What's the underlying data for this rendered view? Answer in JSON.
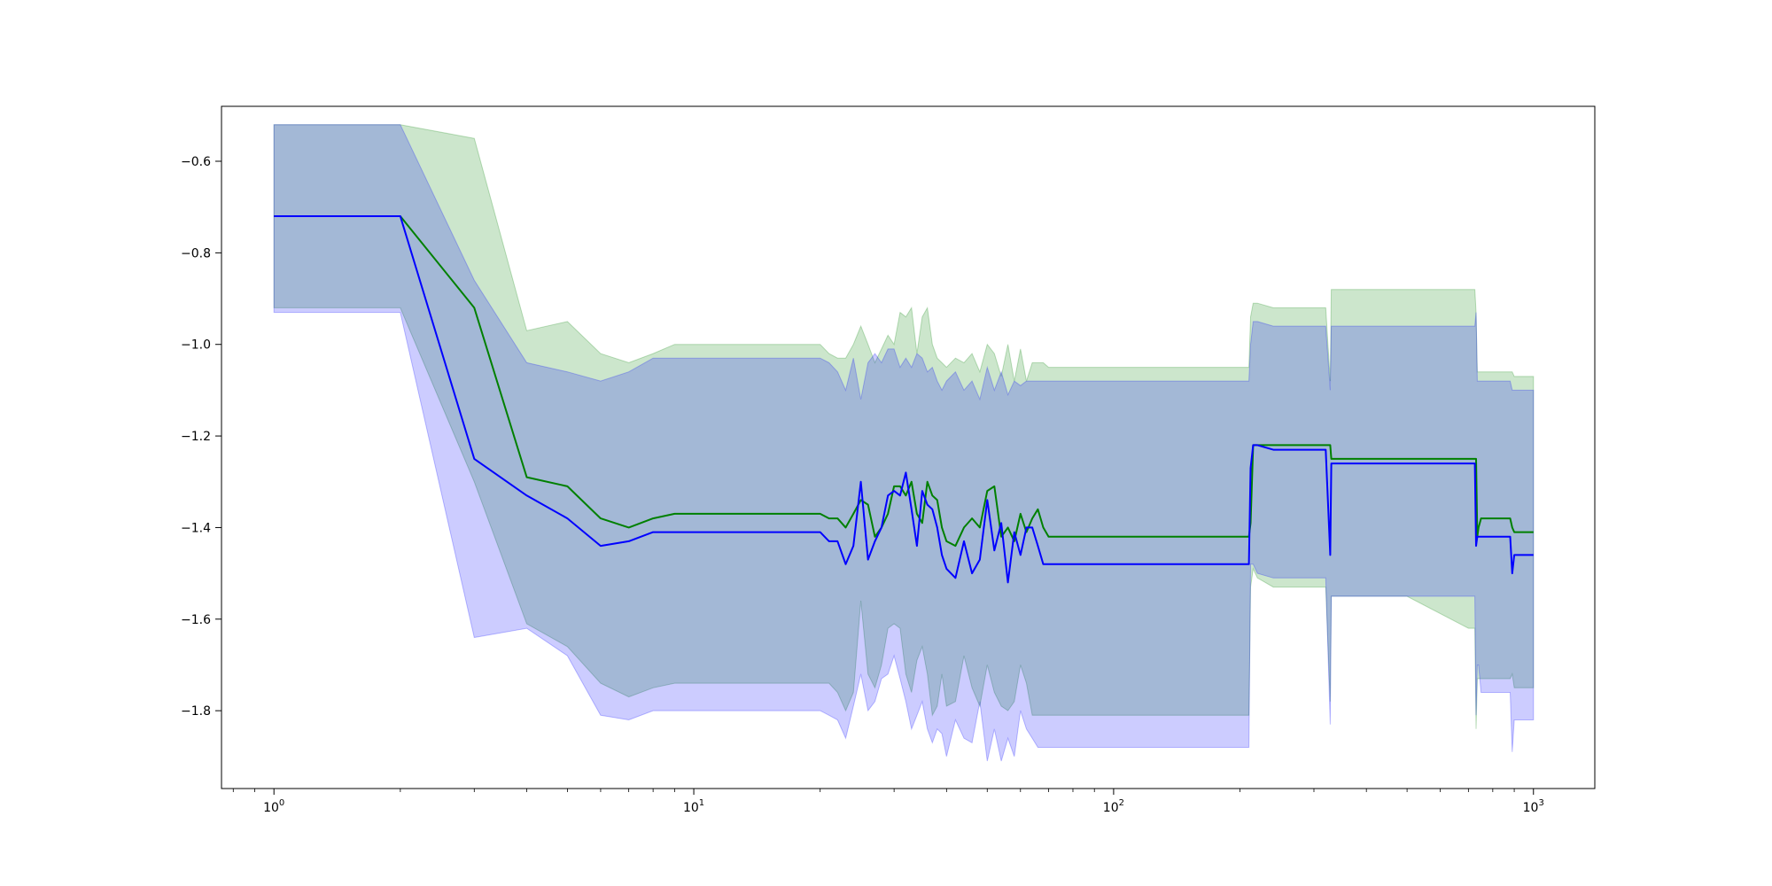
{
  "chart_data": {
    "type": "line",
    "title": "",
    "xlabel": "",
    "ylabel": "",
    "xscale": "log",
    "xlim": [
      0.75,
      1400
    ],
    "ylim": [
      -1.97,
      -0.48
    ],
    "grid": false,
    "legend": "none",
    "x_ticks": [
      {
        "base": "10",
        "exp": "0",
        "value": 1
      },
      {
        "base": "10",
        "exp": "1",
        "value": 10
      },
      {
        "base": "10",
        "exp": "2",
        "value": 100
      },
      {
        "base": "10",
        "exp": "3",
        "value": 1000
      }
    ],
    "y_ticks": [
      {
        "label": "−0.6",
        "value": -0.6
      },
      {
        "label": "−0.8",
        "value": -0.8
      },
      {
        "label": "−1.0",
        "value": -1.0
      },
      {
        "label": "−1.2",
        "value": -1.2
      },
      {
        "label": "−1.4",
        "value": -1.4
      },
      {
        "label": "−1.6",
        "value": -1.6
      },
      {
        "label": "−1.8",
        "value": -1.8
      }
    ],
    "series": [
      {
        "color": "#008000",
        "x": [
          1,
          2,
          3,
          4,
          5,
          6,
          7,
          8,
          9,
          10,
          20,
          21,
          22,
          23,
          24,
          25,
          26,
          27,
          28,
          29,
          30,
          31,
          32,
          33,
          34,
          35,
          36,
          37,
          38,
          39,
          40,
          42,
          44,
          46,
          48,
          50,
          52,
          54,
          56,
          58,
          60,
          62,
          64,
          66,
          68,
          70,
          100,
          200,
          210,
          212,
          215,
          220,
          240,
          320,
          328,
          330,
          340,
          500,
          700,
          725,
          730,
          735,
          740,
          750,
          800,
          880,
          890,
          900,
          1000
        ],
        "y": [
          -0.72,
          -0.72,
          -0.92,
          -1.29,
          -1.31,
          -1.38,
          -1.4,
          -1.38,
          -1.37,
          -1.37,
          -1.37,
          -1.38,
          -1.38,
          -1.4,
          -1.37,
          -1.34,
          -1.35,
          -1.42,
          -1.4,
          -1.37,
          -1.31,
          -1.31,
          -1.33,
          -1.3,
          -1.37,
          -1.39,
          -1.3,
          -1.33,
          -1.34,
          -1.4,
          -1.43,
          -1.44,
          -1.4,
          -1.38,
          -1.4,
          -1.32,
          -1.31,
          -1.42,
          -1.4,
          -1.43,
          -1.37,
          -1.41,
          -1.38,
          -1.36,
          -1.4,
          -1.42,
          -1.42,
          -1.42,
          -1.42,
          -1.39,
          -1.22,
          -1.22,
          -1.22,
          -1.22,
          -1.22,
          -1.25,
          -1.25,
          -1.25,
          -1.25,
          -1.25,
          -1.25,
          -1.42,
          -1.4,
          -1.38,
          -1.38,
          -1.38,
          -1.4,
          -1.41,
          -1.41
        ],
        "upper": [
          -0.52,
          -0.52,
          -0.55,
          -0.97,
          -0.95,
          -1.02,
          -1.04,
          -1.02,
          -1.0,
          -1.0,
          -1.0,
          -1.02,
          -1.03,
          -1.03,
          -1.0,
          -0.96,
          -1.0,
          -1.04,
          -1.01,
          -0.98,
          -1.0,
          -0.93,
          -0.94,
          -0.92,
          -1.02,
          -0.94,
          -0.92,
          -1.0,
          -1.03,
          -1.04,
          -1.05,
          -1.03,
          -1.04,
          -1.02,
          -1.06,
          -1.0,
          -1.02,
          -1.07,
          -1.0,
          -1.08,
          -1.01,
          -1.08,
          -1.04,
          -1.04,
          -1.04,
          -1.05,
          -1.05,
          -1.05,
          -1.05,
          -0.94,
          -0.91,
          -0.91,
          -0.92,
          -0.92,
          -1.08,
          -0.88,
          -0.88,
          -0.88,
          -0.88,
          -0.88,
          -0.93,
          -1.06,
          -1.06,
          -1.06,
          -1.06,
          -1.06,
          -1.06,
          -1.07,
          -1.07
        ],
        "lower": [
          -0.92,
          -0.92,
          -1.3,
          -1.61,
          -1.66,
          -1.74,
          -1.77,
          -1.75,
          -1.74,
          -1.74,
          -1.74,
          -1.74,
          -1.76,
          -1.8,
          -1.76,
          -1.56,
          -1.72,
          -1.75,
          -1.7,
          -1.62,
          -1.61,
          -1.62,
          -1.72,
          -1.76,
          -1.69,
          -1.66,
          -1.72,
          -1.81,
          -1.79,
          -1.72,
          -1.79,
          -1.78,
          -1.68,
          -1.75,
          -1.79,
          -1.7,
          -1.76,
          -1.79,
          -1.8,
          -1.78,
          -1.7,
          -1.74,
          -1.81,
          -1.81,
          -1.81,
          -1.81,
          -1.81,
          -1.81,
          -1.81,
          -1.53,
          -1.49,
          -1.51,
          -1.53,
          -1.53,
          -1.78,
          -1.55,
          -1.55,
          -1.55,
          -1.62,
          -1.62,
          -1.84,
          -1.73,
          -1.73,
          -1.73,
          -1.73,
          -1.73,
          -1.72,
          -1.75,
          -1.75
        ]
      },
      {
        "color": "#0000ff",
        "x": [
          1,
          2,
          3,
          4,
          5,
          6,
          7,
          8,
          9,
          10,
          20,
          21,
          22,
          23,
          24,
          25,
          26,
          27,
          28,
          29,
          30,
          31,
          32,
          33,
          34,
          35,
          36,
          37,
          38,
          39,
          40,
          42,
          44,
          46,
          48,
          50,
          52,
          54,
          56,
          58,
          60,
          62,
          64,
          66,
          68,
          70,
          100,
          200,
          210,
          212,
          215,
          220,
          240,
          320,
          328,
          330,
          340,
          500,
          700,
          725,
          730,
          735,
          740,
          750,
          800,
          880,
          890,
          900,
          1000
        ],
        "y": [
          -0.72,
          -0.72,
          -1.25,
          -1.33,
          -1.38,
          -1.44,
          -1.43,
          -1.41,
          -1.41,
          -1.41,
          -1.41,
          -1.43,
          -1.43,
          -1.48,
          -1.44,
          -1.3,
          -1.47,
          -1.43,
          -1.4,
          -1.33,
          -1.32,
          -1.33,
          -1.28,
          -1.36,
          -1.44,
          -1.32,
          -1.35,
          -1.36,
          -1.4,
          -1.46,
          -1.49,
          -1.51,
          -1.43,
          -1.5,
          -1.47,
          -1.34,
          -1.45,
          -1.39,
          -1.52,
          -1.41,
          -1.46,
          -1.4,
          -1.4,
          -1.44,
          -1.48,
          -1.48,
          -1.48,
          -1.48,
          -1.48,
          -1.27,
          -1.22,
          -1.22,
          -1.23,
          -1.23,
          -1.46,
          -1.26,
          -1.26,
          -1.26,
          -1.26,
          -1.26,
          -1.44,
          -1.42,
          -1.42,
          -1.42,
          -1.42,
          -1.42,
          -1.5,
          -1.46,
          -1.46
        ],
        "upper": [
          -0.52,
          -0.52,
          -0.86,
          -1.04,
          -1.06,
          -1.08,
          -1.06,
          -1.03,
          -1.03,
          -1.03,
          -1.03,
          -1.04,
          -1.06,
          -1.1,
          -1.03,
          -1.12,
          -1.04,
          -1.02,
          -1.04,
          -1.01,
          -1.01,
          -1.05,
          -1.03,
          -1.05,
          -1.02,
          -1.03,
          -1.06,
          -1.05,
          -1.08,
          -1.1,
          -1.08,
          -1.06,
          -1.1,
          -1.08,
          -1.12,
          -1.05,
          -1.1,
          -1.06,
          -1.11,
          -1.08,
          -1.09,
          -1.08,
          -1.08,
          -1.08,
          -1.08,
          -1.08,
          -1.08,
          -1.08,
          -1.08,
          -1.0,
          -0.95,
          -0.95,
          -0.96,
          -0.96,
          -1.1,
          -0.96,
          -0.96,
          -0.96,
          -0.96,
          -0.96,
          -0.93,
          -1.08,
          -1.08,
          -1.08,
          -1.08,
          -1.08,
          -1.1,
          -1.1,
          -1.1
        ],
        "lower": [
          -0.93,
          -0.93,
          -1.64,
          -1.62,
          -1.68,
          -1.81,
          -1.82,
          -1.8,
          -1.8,
          -1.8,
          -1.8,
          -1.81,
          -1.82,
          -1.86,
          -1.79,
          -1.72,
          -1.8,
          -1.78,
          -1.73,
          -1.72,
          -1.68,
          -1.73,
          -1.78,
          -1.84,
          -1.81,
          -1.78,
          -1.84,
          -1.87,
          -1.84,
          -1.85,
          -1.9,
          -1.82,
          -1.86,
          -1.87,
          -1.78,
          -1.91,
          -1.84,
          -1.91,
          -1.86,
          -1.9,
          -1.8,
          -1.84,
          -1.86,
          -1.88,
          -1.88,
          -1.88,
          -1.88,
          -1.88,
          -1.88,
          -1.48,
          -1.48,
          -1.5,
          -1.51,
          -1.51,
          -1.83,
          -1.55,
          -1.55,
          -1.55,
          -1.55,
          -1.55,
          -1.81,
          -1.7,
          -1.7,
          -1.76,
          -1.76,
          -1.76,
          -1.89,
          -1.82,
          -1.82
        ]
      }
    ]
  }
}
